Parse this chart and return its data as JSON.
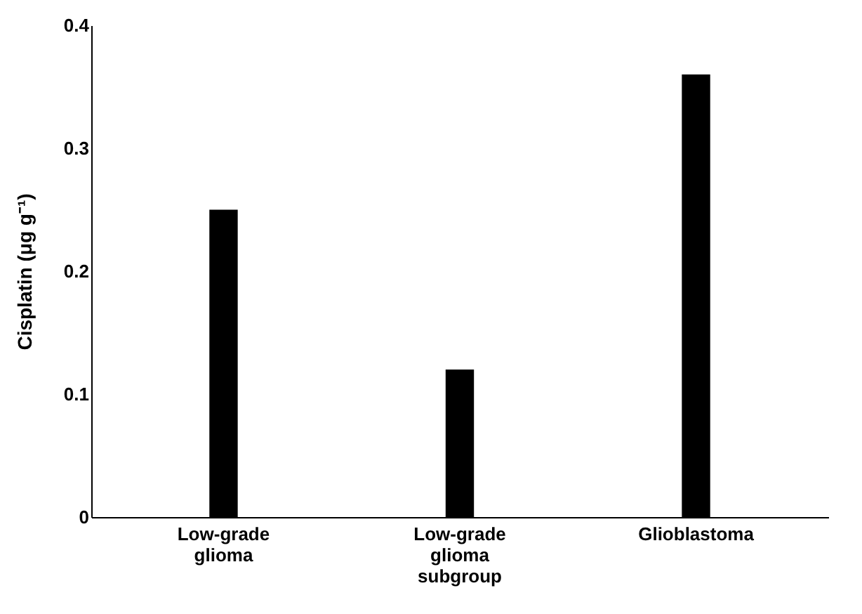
{
  "chart_data": {
    "type": "bar",
    "ylabel": "Cisplatin (μg g⁻¹)",
    "categories": [
      "Low-grade glioma",
      "Low-grade glioma subgroup",
      "Glioblastoma"
    ],
    "values": [
      0.25,
      0.12,
      0.36
    ],
    "color": "#000000",
    "ylim": [
      0,
      0.4
    ],
    "yticks": [
      0,
      0.1,
      0.2,
      0.3,
      0.4
    ],
    "grid": false
  }
}
